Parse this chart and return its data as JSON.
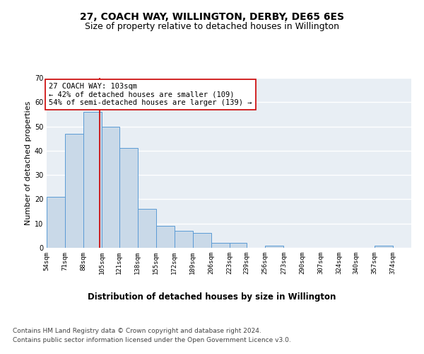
{
  "title": "27, COACH WAY, WILLINGTON, DERBY, DE65 6ES",
  "subtitle": "Size of property relative to detached houses in Willington",
  "xlabel": "Distribution of detached houses by size in Willington",
  "ylabel": "Number of detached properties",
  "bar_edges": [
    54,
    71,
    88,
    105,
    121,
    138,
    155,
    172,
    189,
    206,
    223,
    239,
    256,
    273,
    290,
    307,
    324,
    340,
    357,
    374,
    391
  ],
  "bar_heights": [
    21,
    47,
    56,
    50,
    41,
    16,
    9,
    7,
    6,
    2,
    2,
    0,
    1,
    0,
    0,
    0,
    0,
    0,
    1,
    0
  ],
  "bar_color": "#c9d9e8",
  "bar_edge_color": "#5b9bd5",
  "property_line_x": 103,
  "property_line_color": "#cc0000",
  "annotation_text": "27 COACH WAY: 103sqm\n← 42% of detached houses are smaller (109)\n54% of semi-detached houses are larger (139) →",
  "annotation_box_color": "#ffffff",
  "annotation_box_edge_color": "#cc0000",
  "ylim": [
    0,
    70
  ],
  "yticks": [
    0,
    10,
    20,
    30,
    40,
    50,
    60,
    70
  ],
  "background_color": "#e8eef4",
  "grid_color": "#ffffff",
  "footer_line1": "Contains HM Land Registry data © Crown copyright and database right 2024.",
  "footer_line2": "Contains public sector information licensed under the Open Government Licence v3.0.",
  "title_fontsize": 10,
  "subtitle_fontsize": 9,
  "xlabel_fontsize": 8.5,
  "ylabel_fontsize": 8,
  "tick_fontsize": 6.5,
  "annotation_fontsize": 7.5,
  "footer_fontsize": 6.5
}
